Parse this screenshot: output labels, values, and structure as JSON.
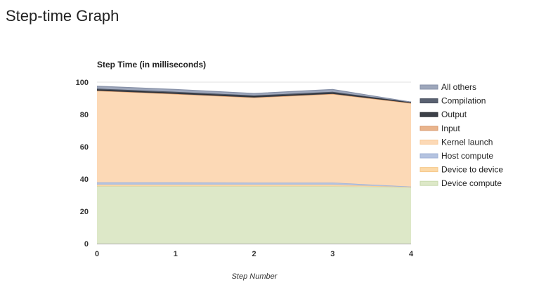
{
  "page": {
    "title": "Step-time Graph"
  },
  "chart_data": {
    "type": "area",
    "stacked": true,
    "title": "Step Time (in milliseconds)",
    "xlabel": "Step Number",
    "ylabel": "",
    "x": [
      0,
      1,
      2,
      3,
      4
    ],
    "xticks": [
      "0",
      "1",
      "2",
      "3",
      "4"
    ],
    "yticks": [
      "0",
      "20",
      "40",
      "60",
      "80",
      "100"
    ],
    "ylim": [
      0,
      100
    ],
    "grid": true,
    "legend_position": "right",
    "series": [
      {
        "name": "Device compute",
        "color": "#dde8c8",
        "stroke": "#c9d9ad",
        "values": [
          35.5,
          35.5,
          35.5,
          35.5,
          35.0
        ]
      },
      {
        "name": "Device to device",
        "color": "#fcd9a8",
        "stroke": "#f6c98a",
        "values": [
          1.0,
          1.0,
          1.0,
          1.0,
          0.0
        ]
      },
      {
        "name": "Host compute",
        "color": "#b4c3e0",
        "stroke": "#9fb1d6",
        "values": [
          1.5,
          1.5,
          1.3,
          1.3,
          0.3
        ]
      },
      {
        "name": "Kernel launch",
        "color": "#fcd9b6",
        "stroke": "#f9cd9e",
        "values": [
          56.5,
          54.5,
          52.5,
          54.7,
          51.5
        ]
      },
      {
        "name": "Input",
        "color": "#e9b48c",
        "stroke": "#d99a6e",
        "values": [
          0.2,
          0.2,
          0.2,
          0.2,
          0.2
        ]
      },
      {
        "name": "Output",
        "color": "#3c4048",
        "stroke": "#2b2e33",
        "values": [
          0.8,
          0.8,
          0.8,
          0.8,
          0.5
        ]
      },
      {
        "name": "Compilation",
        "color": "#5a6272",
        "stroke": "#4a5160",
        "values": [
          0.5,
          0.5,
          0.5,
          0.5,
          0.1
        ]
      },
      {
        "name": "All others",
        "color": "#9ea7bb",
        "stroke": "#8791a8",
        "values": [
          1.5,
          1.5,
          1.2,
          1.5,
          0.1
        ]
      }
    ]
  }
}
